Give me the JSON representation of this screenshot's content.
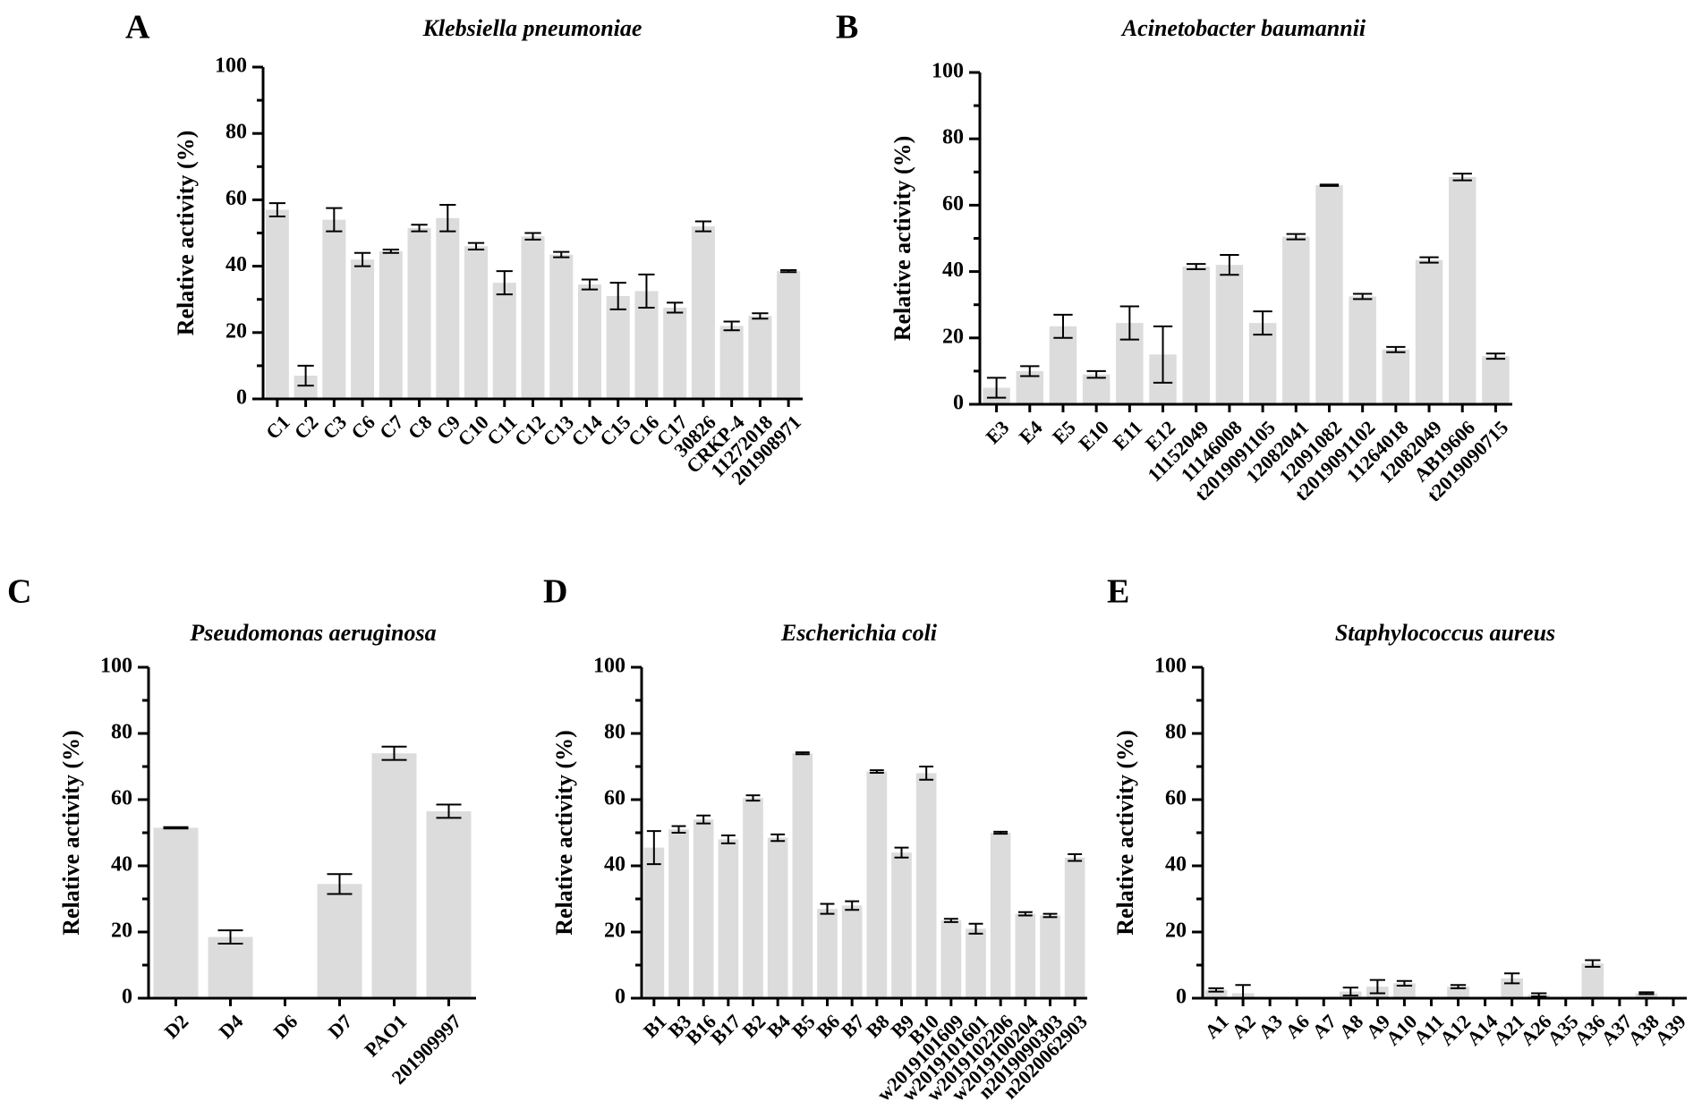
{
  "chart_data": [
    {
      "letter": "A",
      "type": "bar",
      "title": "Klebsiella pneumoniae",
      "ylabel": "Relative activity (%)",
      "xlabel": "",
      "ylim": [
        0,
        100
      ],
      "yticks": [
        0,
        20,
        40,
        60,
        80,
        100
      ],
      "categories": [
        "C1",
        "C2",
        "C3",
        "C6",
        "C7",
        "C8",
        "C9",
        "C10",
        "C11",
        "C12",
        "C13",
        "C14",
        "C15",
        "C16",
        "C17",
        "30826",
        "CRKP-4",
        "11272018",
        "201908971"
      ],
      "values": [
        57,
        7,
        54,
        42,
        44.5,
        51.5,
        54.5,
        46,
        35,
        49,
        43.5,
        34.5,
        31,
        32.5,
        27.5,
        52,
        22,
        25,
        38.5
      ],
      "errors": [
        2,
        3,
        3.5,
        2,
        0.5,
        1,
        4,
        1,
        3.5,
        1,
        0.8,
        1.5,
        4,
        5,
        1.5,
        1.5,
        1.3,
        0.8,
        0.3
      ]
    },
    {
      "letter": "B",
      "type": "bar",
      "title": "Acinetobacter baumannii",
      "ylabel": "Relative activity (%)",
      "xlabel": "",
      "ylim": [
        0,
        100
      ],
      "yticks": [
        0,
        20,
        40,
        60,
        80,
        100
      ],
      "categories": [
        "E3",
        "E4",
        "E5",
        "E10",
        "E11",
        "E12",
        "11152049",
        "11146008",
        "t2019091105",
        "12082041",
        "12091082",
        "t2019091102",
        "11264018",
        "12082049",
        "AB19606",
        "t2019090715"
      ],
      "values": [
        5,
        10,
        23.5,
        9,
        24.5,
        15,
        41.5,
        42,
        24.5,
        50.5,
        66,
        32.5,
        16.5,
        43.5,
        68.5,
        14.5
      ],
      "errors": [
        3,
        1.5,
        3.5,
        1,
        5,
        8.5,
        0.8,
        3,
        3.5,
        0.8,
        0.2,
        0.8,
        0.8,
        0.8,
        1,
        0.8
      ]
    },
    {
      "letter": "C",
      "type": "bar",
      "title": "Pseudomonas aeruginosa",
      "ylabel": "Relative activity (%)",
      "xlabel": "",
      "ylim": [
        0,
        100
      ],
      "yticks": [
        0,
        20,
        40,
        60,
        80,
        100
      ],
      "categories": [
        "D2",
        "D4",
        "D6",
        "D7",
        "PAO1",
        "201909997"
      ],
      "values": [
        51.5,
        18.5,
        0,
        34.5,
        74,
        56.5
      ],
      "errors": [
        0.2,
        2,
        0,
        3,
        2,
        2
      ]
    },
    {
      "letter": "D",
      "type": "bar",
      "title": "Escherichia coli",
      "ylabel": "Relative activity (%)",
      "xlabel": "",
      "ylim": [
        0,
        100
      ],
      "yticks": [
        0,
        20,
        40,
        60,
        80,
        100
      ],
      "categories": [
        "B1",
        "B3",
        "B16",
        "B17",
        "B2",
        "B4",
        "B5",
        "B6",
        "B7",
        "B8",
        "B9",
        "B10",
        "w2019101609",
        "w2019101601",
        "w2019102206",
        "w2019100204",
        "n2019090303",
        "n2020062903"
      ],
      "values": [
        45.5,
        51,
        54,
        48,
        60.5,
        48.5,
        74,
        27,
        28,
        68.5,
        44,
        68,
        23.5,
        21,
        50,
        25.5,
        25,
        42.5
      ],
      "errors": [
        5,
        1,
        1.2,
        1.2,
        0.8,
        1,
        0.3,
        1.5,
        1.3,
        0.4,
        1.5,
        2,
        0.5,
        1.5,
        0.3,
        0.5,
        0.5,
        1
      ]
    },
    {
      "letter": "E",
      "type": "bar",
      "title": "Staphylococcus aureus",
      "ylabel": "Relative activity (%)",
      "xlabel": "",
      "ylim": [
        0,
        100
      ],
      "yticks": [
        0,
        20,
        40,
        60,
        80,
        100
      ],
      "categories": [
        "A1",
        "A2",
        "A3",
        "A6",
        "A7",
        "A8",
        "A9",
        "A10",
        "A11",
        "A12",
        "A14",
        "A21",
        "A26",
        "A35",
        "A36",
        "A37",
        "A38",
        "A39"
      ],
      "values": [
        2.5,
        1.5,
        0,
        0,
        0,
        2,
        3.5,
        4.5,
        0,
        3.5,
        0,
        6,
        1,
        0,
        10.5,
        0,
        1.5,
        0
      ],
      "errors": [
        0.5,
        2.5,
        0,
        0,
        0,
        1.2,
        2,
        0.7,
        0,
        0.5,
        0,
        1.5,
        0.5,
        0,
        1,
        0,
        0.3,
        0
      ]
    }
  ]
}
